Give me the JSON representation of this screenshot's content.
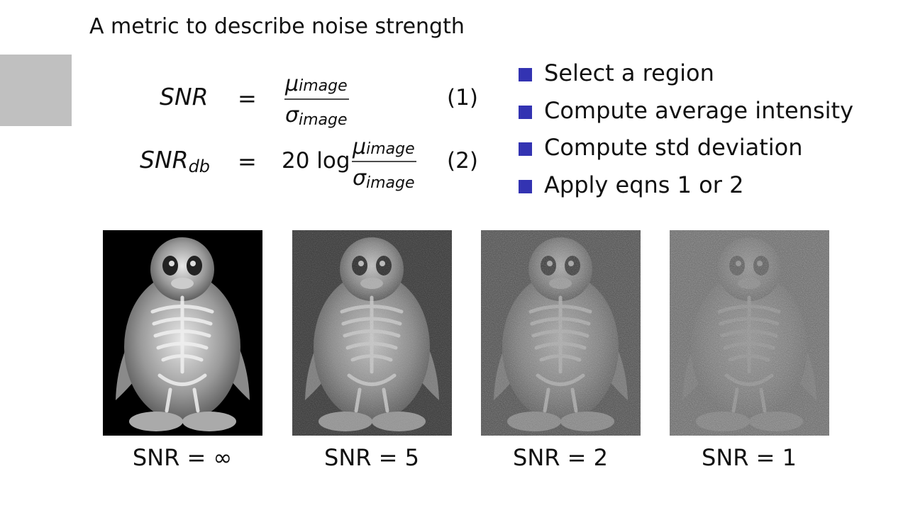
{
  "title": "A metric to describe noise strength",
  "equations": [
    {
      "lhs": "SNR",
      "relation": "=",
      "numerator": {
        "symbol": "μ",
        "sub": "image"
      },
      "denominator": {
        "symbol": "σ",
        "sub": "image"
      },
      "number": "(1)"
    },
    {
      "lhs": "SNR",
      "lhs_sub": "db",
      "relation": "=",
      "prefix": "20 log",
      "numerator": {
        "symbol": "μ",
        "sub": "image"
      },
      "denominator": {
        "symbol": "σ",
        "sub": "image"
      },
      "number": "(2)"
    }
  ],
  "bullets": [
    "Select a region",
    "Compute average intensity",
    "Compute std deviation",
    "Apply eqns 1 or 2"
  ],
  "images": [
    {
      "caption": "SNR = ∞"
    },
    {
      "caption": "SNR = 5"
    },
    {
      "caption": "SNR = 2"
    },
    {
      "caption": "SNR = 1"
    }
  ]
}
